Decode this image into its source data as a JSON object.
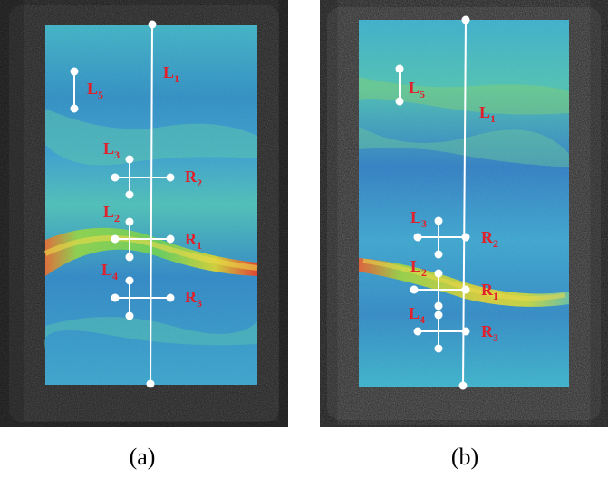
{
  "panels": [
    {
      "caption": "(a)",
      "labels": {
        "L1": {
          "main": "L",
          "sub": "1"
        },
        "L2": {
          "main": "L",
          "sub": "2"
        },
        "L3": {
          "main": "L",
          "sub": "3"
        },
        "L4": {
          "main": "L",
          "sub": "4"
        },
        "L5": {
          "main": "L",
          "sub": "5"
        },
        "R1": {
          "main": "R",
          "sub": "1"
        },
        "R2": {
          "main": "R",
          "sub": "2"
        },
        "R3": {
          "main": "R",
          "sub": "3"
        }
      }
    },
    {
      "caption": "(b)",
      "labels": {
        "L1": {
          "main": "L",
          "sub": "1"
        },
        "L2": {
          "main": "L",
          "sub": "2"
        },
        "L3": {
          "main": "L",
          "sub": "3"
        },
        "L4": {
          "main": "L",
          "sub": "4"
        },
        "L5": {
          "main": "L",
          "sub": "5"
        },
        "R1": {
          "main": "R",
          "sub": "1"
        },
        "R2": {
          "main": "R",
          "sub": "2"
        },
        "R3": {
          "main": "R",
          "sub": "3"
        }
      }
    }
  ],
  "colors": {
    "background_dark": "#141414",
    "field_blue": "#2e7fc0",
    "field_cyan": "#3fb8c8",
    "band_green": "#7fd44a",
    "band_yellow": "#e8d430",
    "band_red": "#e85030",
    "label_red": "#e0202a",
    "marker_white": "#ffffff"
  }
}
